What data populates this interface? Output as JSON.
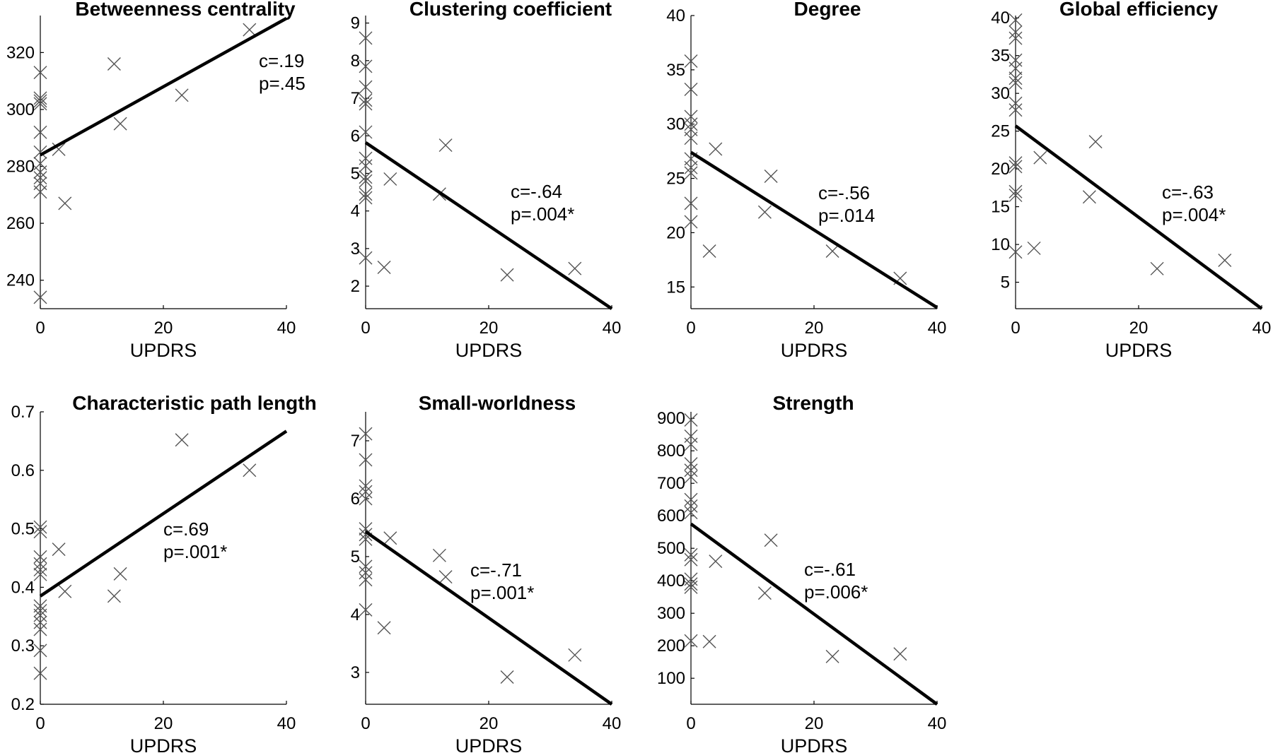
{
  "chart_data": [
    {
      "type": "scatter",
      "title": "Betweenness centrality",
      "xlabel": "UPDRS",
      "ylabel": "",
      "xlim": [
        0,
        40
      ],
      "ylim": [
        230,
        333
      ],
      "xticks": [
        0,
        20,
        40
      ],
      "yticks": [
        240,
        260,
        280,
        300,
        320
      ],
      "points": [
        {
          "x": 0,
          "y": 234
        },
        {
          "x": 0,
          "y": 271
        },
        {
          "x": 0,
          "y": 274
        },
        {
          "x": 0,
          "y": 276
        },
        {
          "x": 0,
          "y": 278
        },
        {
          "x": 0,
          "y": 281
        },
        {
          "x": 0,
          "y": 285
        },
        {
          "x": 0,
          "y": 292
        },
        {
          "x": 0,
          "y": 302
        },
        {
          "x": 0,
          "y": 303
        },
        {
          "x": 0,
          "y": 304
        },
        {
          "x": 0,
          "y": 313
        },
        {
          "x": 3,
          "y": 286
        },
        {
          "x": 4,
          "y": 267
        },
        {
          "x": 12,
          "y": 316
        },
        {
          "x": 13,
          "y": 295
        },
        {
          "x": 23,
          "y": 305
        },
        {
          "x": 34,
          "y": 328
        }
      ],
      "fit_line": {
        "x": [
          0,
          40
        ],
        "y": [
          284,
          332
        ]
      },
      "annotation": {
        "c": "c=.19",
        "p": "p=.45"
      }
    },
    {
      "type": "scatter",
      "title": "Clustering coefficient",
      "xlabel": "UPDRS",
      "ylabel": "",
      "xlim": [
        0,
        40
      ],
      "ylim": [
        1.4,
        9.2
      ],
      "xticks": [
        0,
        20,
        40
      ],
      "yticks": [
        2,
        3,
        4,
        5,
        6,
        7,
        8,
        9
      ],
      "points": [
        {
          "x": 0,
          "y": 2.75
        },
        {
          "x": 0,
          "y": 4.35
        },
        {
          "x": 0,
          "y": 4.45
        },
        {
          "x": 0,
          "y": 4.8
        },
        {
          "x": 0,
          "y": 4.9
        },
        {
          "x": 0,
          "y": 5.2
        },
        {
          "x": 0,
          "y": 5.4
        },
        {
          "x": 0,
          "y": 6.1
        },
        {
          "x": 0,
          "y": 6.85
        },
        {
          "x": 0,
          "y": 6.95
        },
        {
          "x": 0,
          "y": 7.3
        },
        {
          "x": 0,
          "y": 7.85
        },
        {
          "x": 0,
          "y": 8.6
        },
        {
          "x": 3,
          "y": 2.5
        },
        {
          "x": 4,
          "y": 4.85
        },
        {
          "x": 12,
          "y": 4.45
        },
        {
          "x": 13,
          "y": 5.75
        },
        {
          "x": 23,
          "y": 2.3
        },
        {
          "x": 34,
          "y": 2.47
        }
      ],
      "fit_line": {
        "x": [
          0,
          40
        ],
        "y": [
          5.82,
          1.4
        ]
      },
      "annotation": {
        "c": "c=-.64",
        "p": "p=.004*"
      }
    },
    {
      "type": "scatter",
      "title": "Degree",
      "xlabel": "UPDRS",
      "ylabel": "",
      "xlim": [
        0,
        40
      ],
      "ylim": [
        13,
        40
      ],
      "xticks": [
        0,
        20,
        40
      ],
      "yticks": [
        15,
        20,
        25,
        30,
        35,
        40
      ],
      "points": [
        {
          "x": 0,
          "y": 21.0
        },
        {
          "x": 0,
          "y": 22.7
        },
        {
          "x": 0,
          "y": 25.5
        },
        {
          "x": 0,
          "y": 26.0
        },
        {
          "x": 0,
          "y": 26.8
        },
        {
          "x": 0,
          "y": 28.7
        },
        {
          "x": 0,
          "y": 29.5
        },
        {
          "x": 0,
          "y": 30.0
        },
        {
          "x": 0,
          "y": 30.7
        },
        {
          "x": 0,
          "y": 33.2
        },
        {
          "x": 0,
          "y": 35.8
        },
        {
          "x": 3,
          "y": 18.3
        },
        {
          "x": 4,
          "y": 27.7
        },
        {
          "x": 12,
          "y": 21.9
        },
        {
          "x": 13,
          "y": 25.2
        },
        {
          "x": 23,
          "y": 18.3
        },
        {
          "x": 34,
          "y": 15.8
        }
      ],
      "fit_line": {
        "x": [
          0,
          40
        ],
        "y": [
          27.4,
          13.1
        ]
      },
      "annotation": {
        "c": "c=-.56",
        "p": "p=.014"
      }
    },
    {
      "type": "scatter",
      "title": "Global efficiency",
      "xlabel": "UPDRS",
      "ylabel": "",
      "xlim": [
        0,
        40
      ],
      "ylim": [
        1.5,
        40.3
      ],
      "xticks": [
        0,
        20,
        40
      ],
      "yticks": [
        5,
        10,
        15,
        20,
        25,
        30,
        35,
        40
      ],
      "points": [
        {
          "x": 0,
          "y": 9.0
        },
        {
          "x": 0,
          "y": 16.5
        },
        {
          "x": 0,
          "y": 17.0
        },
        {
          "x": 0,
          "y": 20.3
        },
        {
          "x": 0,
          "y": 20.8
        },
        {
          "x": 0,
          "y": 27.8
        },
        {
          "x": 0,
          "y": 28.7
        },
        {
          "x": 0,
          "y": 31.4
        },
        {
          "x": 0,
          "y": 32.0
        },
        {
          "x": 0,
          "y": 33.3
        },
        {
          "x": 0,
          "y": 34.4
        },
        {
          "x": 0,
          "y": 37.3
        },
        {
          "x": 0,
          "y": 38.1
        },
        {
          "x": 0,
          "y": 39.7
        },
        {
          "x": 3,
          "y": 9.5
        },
        {
          "x": 4,
          "y": 21.5
        },
        {
          "x": 12,
          "y": 16.3
        },
        {
          "x": 13,
          "y": 23.6
        },
        {
          "x": 23,
          "y": 6.8
        },
        {
          "x": 34,
          "y": 7.9
        }
      ],
      "fit_line": {
        "x": [
          0,
          40
        ],
        "y": [
          25.7,
          1.5
        ]
      },
      "annotation": {
        "c": "c=-.63",
        "p": "p=.004*"
      }
    },
    {
      "type": "scatter",
      "title": "Characteristic path length",
      "xlabel": "UPDRS",
      "ylabel": "",
      "xlim": [
        0,
        40
      ],
      "ylim": [
        0.2,
        0.7
      ],
      "xticks": [
        0,
        20,
        40
      ],
      "yticks": [
        0.2,
        0.3,
        0.4,
        0.5,
        0.6,
        0.7
      ],
      "ytick_labels": [
        "0.2",
        "0.3",
        "0.4",
        "0.5",
        "0.6",
        "0.7"
      ],
      "points": [
        {
          "x": 0,
          "y": 0.253
        },
        {
          "x": 0,
          "y": 0.292
        },
        {
          "x": 0,
          "y": 0.328
        },
        {
          "x": 0,
          "y": 0.34
        },
        {
          "x": 0,
          "y": 0.352
        },
        {
          "x": 0,
          "y": 0.36
        },
        {
          "x": 0,
          "y": 0.368
        },
        {
          "x": 0,
          "y": 0.422
        },
        {
          "x": 0,
          "y": 0.43
        },
        {
          "x": 0,
          "y": 0.44
        },
        {
          "x": 0,
          "y": 0.452
        },
        {
          "x": 0,
          "y": 0.495
        },
        {
          "x": 0,
          "y": 0.503
        },
        {
          "x": 3,
          "y": 0.465
        },
        {
          "x": 4,
          "y": 0.393
        },
        {
          "x": 12,
          "y": 0.385
        },
        {
          "x": 13,
          "y": 0.423
        },
        {
          "x": 23,
          "y": 0.652
        },
        {
          "x": 34,
          "y": 0.6
        }
      ],
      "fit_line": {
        "x": [
          0,
          40
        ],
        "y": [
          0.385,
          0.667
        ]
      },
      "annotation": {
        "c": "c=.69",
        "p": "p=.001*"
      }
    },
    {
      "type": "scatter",
      "title": "Small-worldness",
      "xlabel": "UPDRS",
      "ylabel": "",
      "xlim": [
        0,
        40
      ],
      "ylim": [
        2.45,
        7.5
      ],
      "xticks": [
        0,
        20,
        40
      ],
      "yticks": [
        3,
        4,
        5,
        6,
        7
      ],
      "points": [
        {
          "x": 0,
          "y": 4.08
        },
        {
          "x": 0,
          "y": 4.6
        },
        {
          "x": 0,
          "y": 4.72
        },
        {
          "x": 0,
          "y": 4.83
        },
        {
          "x": 0,
          "y": 5.3
        },
        {
          "x": 0,
          "y": 5.38
        },
        {
          "x": 0,
          "y": 5.48
        },
        {
          "x": 0,
          "y": 6.0
        },
        {
          "x": 0,
          "y": 6.12
        },
        {
          "x": 0,
          "y": 6.22
        },
        {
          "x": 0,
          "y": 6.67
        },
        {
          "x": 0,
          "y": 7.12
        },
        {
          "x": 3,
          "y": 3.77
        },
        {
          "x": 4,
          "y": 5.32
        },
        {
          "x": 12,
          "y": 5.02
        },
        {
          "x": 13,
          "y": 4.65
        },
        {
          "x": 23,
          "y": 2.92
        },
        {
          "x": 34,
          "y": 3.3
        }
      ],
      "fit_line": {
        "x": [
          0,
          40
        ],
        "y": [
          5.43,
          2.45
        ]
      },
      "annotation": {
        "c": "c=-.71",
        "p": "p=.001*"
      }
    },
    {
      "type": "scatter",
      "title": "Strength",
      "xlabel": "UPDRS",
      "ylabel": "",
      "xlim": [
        0,
        40
      ],
      "ylim": [
        20,
        920
      ],
      "xticks": [
        0,
        20,
        40
      ],
      "yticks": [
        100,
        200,
        300,
        400,
        500,
        600,
        700,
        800,
        900
      ],
      "points": [
        {
          "x": 0,
          "y": 215
        },
        {
          "x": 0,
          "y": 380
        },
        {
          "x": 0,
          "y": 390
        },
        {
          "x": 0,
          "y": 405
        },
        {
          "x": 0,
          "y": 465
        },
        {
          "x": 0,
          "y": 480
        },
        {
          "x": 0,
          "y": 610
        },
        {
          "x": 0,
          "y": 630
        },
        {
          "x": 0,
          "y": 650
        },
        {
          "x": 0,
          "y": 720
        },
        {
          "x": 0,
          "y": 740
        },
        {
          "x": 0,
          "y": 760
        },
        {
          "x": 0,
          "y": 820
        },
        {
          "x": 0,
          "y": 845
        },
        {
          "x": 0,
          "y": 895
        },
        {
          "x": 3,
          "y": 213
        },
        {
          "x": 4,
          "y": 460
        },
        {
          "x": 12,
          "y": 362
        },
        {
          "x": 13,
          "y": 525
        },
        {
          "x": 23,
          "y": 167
        },
        {
          "x": 34,
          "y": 175
        }
      ],
      "fit_line": {
        "x": [
          0,
          40
        ],
        "y": [
          575,
          20
        ]
      },
      "annotation": {
        "c": "c=-.61",
        "p": "p=.006*"
      }
    }
  ]
}
